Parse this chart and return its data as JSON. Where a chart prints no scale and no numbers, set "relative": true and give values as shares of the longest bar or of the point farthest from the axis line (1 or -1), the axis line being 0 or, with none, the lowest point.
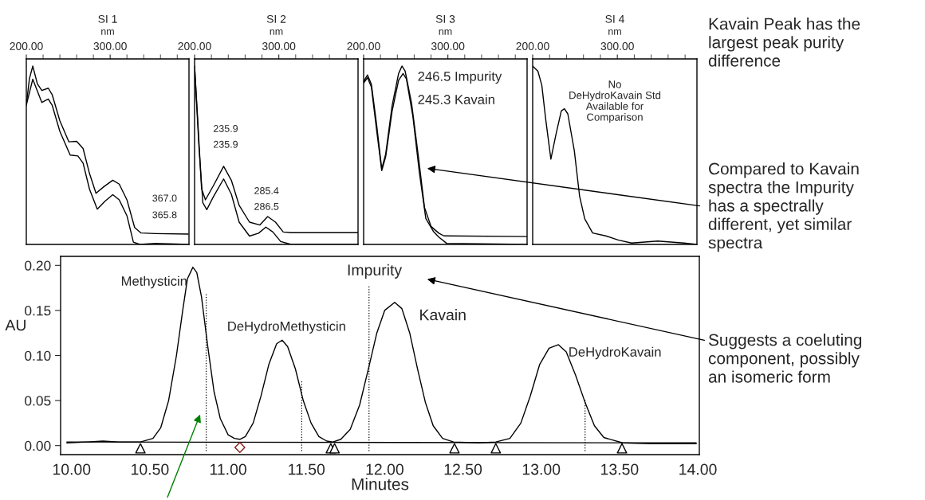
{
  "chart_data": [
    {
      "type": "line",
      "relative": true,
      "title": "SI 1",
      "xlabel": "nm",
      "xlim": [
        200,
        394
      ],
      "tick_labels": "x",
      "xticks": [
        {
          "value": 200,
          "label": "200.00"
        },
        {
          "value": 220,
          "label": null
        },
        {
          "value": 240,
          "label": null
        },
        {
          "value": 260,
          "label": null
        },
        {
          "value": 280,
          "label": null
        },
        {
          "value": 300,
          "label": "300.00"
        },
        {
          "value": 320,
          "label": null
        },
        {
          "value": 340,
          "label": null
        },
        {
          "value": 360,
          "label": null
        },
        {
          "value": 380,
          "label": null
        }
      ],
      "annotations": [
        "367.0",
        "365.8"
      ],
      "series": [
        {
          "color": "#000000",
          "x": [
            200.0,
            203.7,
            207.7,
            213.2,
            218.5,
            226.2,
            230.8,
            240.0,
            250.8,
            260.0,
            267.7,
            275.4,
            283.1,
            292.3,
            303.1,
            310.8,
            320.0,
            329.2,
            336.9,
            353.8,
            393.2
          ],
          "values": [
            0.781,
            0.929,
            1.0,
            0.9,
            0.863,
            0.876,
            0.84,
            0.693,
            0.575,
            0.578,
            0.538,
            0.397,
            0.287,
            0.323,
            0.36,
            0.338,
            0.25,
            0.095,
            0.064,
            0.061,
            0.058
          ]
        },
        {
          "color": "#000000",
          "x": [
            200.0,
            207.7,
            218.5,
            226.2,
            230.8,
            240.0,
            252.3,
            261.5,
            267.7,
            275.4,
            284.6,
            293.8,
            303.1,
            310.8,
            320.0,
            327.7,
            335.4,
            353.8,
            393.2
          ],
          "values": [
            0.781,
            0.926,
            0.796,
            0.815,
            0.781,
            0.634,
            0.501,
            0.496,
            0.456,
            0.309,
            0.198,
            0.242,
            0.279,
            0.25,
            0.161,
            0.013,
            0.0,
            0.006,
            0.0
          ]
        }
      ]
    },
    {
      "type": "line",
      "relative": true,
      "title": "SI 2",
      "xlabel": "nm",
      "xlim": [
        200,
        394
      ],
      "tick_labels": "x",
      "xticks": [
        {
          "value": 200,
          "label": "200.00"
        },
        {
          "value": 220,
          "label": null
        },
        {
          "value": 240,
          "label": null
        },
        {
          "value": 260,
          "label": null
        },
        {
          "value": 280,
          "label": null
        },
        {
          "value": 300,
          "label": "300.00"
        },
        {
          "value": 320,
          "label": null
        },
        {
          "value": 340,
          "label": null
        },
        {
          "value": 360,
          "label": null
        },
        {
          "value": 380,
          "label": null
        }
      ],
      "annotations": [
        "235.9",
        "235.9",
        "285.4",
        "286.5"
      ],
      "series": [
        {
          "color": "#000000",
          "x": [
            200.0,
            203.7,
            208.3,
            212.9,
            222.2,
            234.5,
            243.7,
            252.9,
            265.2,
            277.5,
            286.8,
            296.0,
            305.2,
            314.5,
            394.0
          ],
          "values": [
            1.0,
            0.703,
            0.313,
            0.25,
            0.328,
            0.438,
            0.359,
            0.219,
            0.125,
            0.109,
            0.156,
            0.125,
            0.07,
            0.066,
            0.066
          ]
        },
        {
          "color": "#000000",
          "x": [
            200.0,
            205.2,
            209.8,
            214.5,
            222.2,
            234.5,
            243.7,
            252.9,
            265.2,
            276.0,
            284.6,
            292.9,
            302.2,
            314.5,
            394.0
          ],
          "values": [
            1.0,
            0.547,
            0.234,
            0.195,
            0.266,
            0.367,
            0.281,
            0.125,
            0.047,
            0.063,
            0.097,
            0.07,
            0.016,
            0.0,
            0.0
          ]
        }
      ]
    },
    {
      "type": "line",
      "relative": true,
      "title": "SI 3",
      "xlabel": "nm",
      "xlim": [
        200,
        394
      ],
      "tick_labels": "x",
      "xticks": [
        {
          "value": 200,
          "label": "200.00"
        },
        {
          "value": 220,
          "label": null
        },
        {
          "value": 240,
          "label": null
        },
        {
          "value": 260,
          "label": null
        },
        {
          "value": 280,
          "label": null
        },
        {
          "value": 300,
          "label": "300.00"
        },
        {
          "value": 320,
          "label": null
        },
        {
          "value": 340,
          "label": null
        },
        {
          "value": 360,
          "label": null
        },
        {
          "value": 380,
          "label": null
        }
      ],
      "annotations": [
        "246.5 Impurity",
        "245.3 Kavain"
      ],
      "series": [
        {
          "color": "#000000",
          "x": [
            200.0,
            204.6,
            209.2,
            215.4,
            221.5,
            226.2,
            233.8,
            241.5,
            245.5,
            249.2,
            256.9,
            264.6,
            272.3,
            280.0,
            289.2,
            295.4,
            393.8
          ],
          "values": [
            0.913,
            0.95,
            0.898,
            0.672,
            0.424,
            0.507,
            0.777,
            0.958,
            1.0,
            0.973,
            0.792,
            0.507,
            0.206,
            0.101,
            0.063,
            0.048,
            0.044
          ]
        },
        {
          "color": "#000000",
          "x": [
            200.0,
            204.6,
            209.2,
            215.4,
            221.5,
            226.2,
            233.8,
            241.5,
            246.8,
            250.8,
            258.5,
            266.2,
            273.8,
            283.1,
            289.2,
            298.5,
            393.8
          ],
          "values": [
            0.905,
            0.935,
            0.883,
            0.642,
            0.414,
            0.492,
            0.747,
            0.92,
            0.958,
            0.928,
            0.717,
            0.402,
            0.146,
            0.071,
            0.041,
            0.006,
            0.0
          ]
        }
      ]
    },
    {
      "type": "line",
      "relative": true,
      "title": "SI 4",
      "xlabel": "nm",
      "xlim": [
        200,
        394
      ],
      "tick_labels": "x",
      "xticks": [
        {
          "value": 200,
          "label": "200.00"
        },
        {
          "value": 220,
          "label": null
        },
        {
          "value": 240,
          "label": null
        },
        {
          "value": 260,
          "label": null
        },
        {
          "value": 280,
          "label": null
        },
        {
          "value": 300,
          "label": "300.00"
        },
        {
          "value": 320,
          "label": null
        },
        {
          "value": 340,
          "label": null
        },
        {
          "value": 360,
          "label": null
        },
        {
          "value": 380,
          "label": null
        }
      ],
      "annotations": [
        "No\nDeHydroKavain Std\nAvailable for\nComparison"
      ],
      "series": [
        {
          "color": "#000000",
          "x": [
            200.0,
            206.2,
            210.8,
            215.4,
            221.5,
            227.7,
            233.8,
            237.5,
            241.5,
            249.2,
            255.4,
            261.5,
            270.8,
            286.2,
            301.5,
            316.9,
            347.7,
            378.5,
            394.0
          ],
          "values": [
            1.0,
            0.971,
            0.892,
            0.701,
            0.478,
            0.621,
            0.748,
            0.761,
            0.732,
            0.525,
            0.271,
            0.143,
            0.064,
            0.048,
            0.024,
            0.008,
            0.019,
            0.008,
            0.0
          ]
        }
      ]
    },
    {
      "type": "line",
      "xlabel": "Minutes",
      "ylabel": "AU",
      "xlim": [
        9.93,
        14.01
      ],
      "ylim": [
        -0.01,
        0.21
      ],
      "xticks": [
        {
          "value": 10,
          "label": "10.00"
        },
        {
          "value": 10.5,
          "label": "10.50"
        },
        {
          "value": 11,
          "label": "11.00"
        },
        {
          "value": 11.5,
          "label": "11.50"
        },
        {
          "value": 12,
          "label": "12.00"
        },
        {
          "value": 12.5,
          "label": "12.50"
        },
        {
          "value": 13,
          "label": "13.00"
        },
        {
          "value": 13.5,
          "label": "13.50"
        },
        {
          "value": 14,
          "label": "14.00"
        }
      ],
      "yticks": [
        {
          "value": 0,
          "label": "0.00"
        },
        {
          "value": 0.05,
          "label": "0.05"
        },
        {
          "value": 0.1,
          "label": "0.10"
        },
        {
          "value": 0.15,
          "label": "0.15"
        },
        {
          "value": 0.2,
          "label": "0.20"
        }
      ],
      "annotations": [
        {
          "text": "Methysticin",
          "x": 10.775,
          "y": 0.198
        },
        {
          "text": "DeHydroMethysticin",
          "x": 11.345,
          "y": 0.117
        },
        {
          "text": "Impurity",
          "x": 11.9,
          "y": 0.178
        },
        {
          "text": "Kavain",
          "x": 12.064,
          "y": 0.159
        },
        {
          "text": "DeHydroKavain",
          "x": 13.11,
          "y": 0.112
        },
        "Kavain Peak has the\nlargest peak purity\ndifference",
        "Compared to Kavain\nspectra the Impurity\nhas a spectrally\ndifferent, yet similar\nspectra",
        "Suggests a coeluting\ncomponent, possibly\nan isomeric form"
      ],
      "series": [
        {
          "color": "#000000",
          "x": [
            9.97,
            10.1,
            10.2,
            10.3,
            10.44,
            10.52,
            10.57,
            10.62,
            10.67,
            10.71,
            10.74,
            10.775,
            10.8,
            10.83,
            10.87,
            10.91,
            10.95,
            11.0,
            11.04,
            11.075,
            11.11,
            11.16,
            11.21,
            11.26,
            11.31,
            11.345,
            11.38,
            11.43,
            11.48,
            11.53,
            11.58,
            11.63,
            11.67,
            11.72,
            11.78,
            11.84,
            11.9,
            11.95,
            12.0,
            12.064,
            12.11,
            12.16,
            12.21,
            12.26,
            12.31,
            12.37,
            12.44,
            12.6,
            12.71,
            12.8,
            12.87,
            12.93,
            12.99,
            13.05,
            13.11,
            13.16,
            13.22,
            13.28,
            13.34,
            13.4,
            13.52,
            13.7,
            13.99
          ],
          "values": [
            0.003,
            0.004,
            0.005,
            0.004,
            0.004,
            0.008,
            0.02,
            0.05,
            0.1,
            0.15,
            0.185,
            0.198,
            0.192,
            0.165,
            0.11,
            0.06,
            0.03,
            0.012,
            0.008,
            0.007,
            0.01,
            0.025,
            0.055,
            0.09,
            0.113,
            0.117,
            0.11,
            0.085,
            0.05,
            0.025,
            0.01,
            0.005,
            0.004,
            0.007,
            0.018,
            0.045,
            0.088,
            0.125,
            0.15,
            0.159,
            0.152,
            0.125,
            0.085,
            0.048,
            0.022,
            0.008,
            0.004,
            0.003,
            0.004,
            0.008,
            0.025,
            0.055,
            0.09,
            0.108,
            0.112,
            0.104,
            0.078,
            0.048,
            0.022,
            0.009,
            0.003,
            0.002,
            0.002
          ]
        },
        {
          "color": "#000000",
          "x": [
            9.97,
            13.99
          ],
          "values": [
            0.004,
            0.003
          ]
        },
        {
          "color": "#000000",
          "line_style": "dotted",
          "x": [
            10.86,
            10.86
          ],
          "values": [
            -0.006,
            0.169
          ]
        },
        {
          "color": "#000000",
          "line_style": "dotted",
          "x": [
            11.47,
            11.47
          ],
          "values": [
            -0.006,
            0.073
          ]
        },
        {
          "color": "#000000",
          "line_style": "dotted",
          "x": [
            11.9,
            11.9
          ],
          "values": [
            -0.006,
            0.178
          ]
        },
        {
          "color": "#000000",
          "line_style": "dotted",
          "x": [
            13.28,
            13.28
          ],
          "values": [
            -0.006,
            0.051
          ]
        },
        {
          "type": "scatter",
          "marker": "triangle",
          "color": "#000000",
          "x": [
            10.44,
            11.656,
            11.68,
            12.446,
            12.71,
            13.516
          ],
          "values": [
            -0.003,
            -0.003,
            -0.003,
            -0.003,
            -0.003,
            -0.003
          ]
        },
        {
          "type": "scatter",
          "marker": "diamond",
          "color": "#8b1a1a",
          "x": [
            11.075
          ],
          "values": [
            -0.002
          ]
        }
      ]
    }
  ]
}
